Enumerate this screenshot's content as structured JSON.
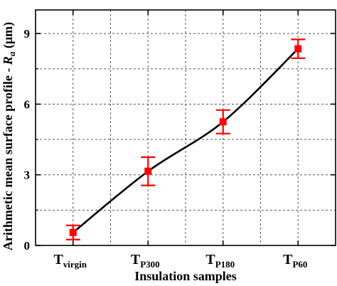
{
  "chart_data": {
    "type": "line",
    "xlabel": "Insulation samples",
    "ylabel_main": "Arithmetic mean surface profile - ",
    "ylabel_symbol": "R",
    "ylabel_subscript": "a",
    "ylabel_unit": " (μm)",
    "ylim": [
      0,
      10
    ],
    "yticks": [
      0,
      3,
      6,
      9
    ],
    "yticks_labels": [
      "0",
      "3",
      "6",
      "9"
    ],
    "grid": true,
    "categories": [
      {
        "main": "T",
        "sub": "virgin"
      },
      {
        "main": "T",
        "sub": "P300"
      },
      {
        "main": "T",
        "sub": "P180"
      },
      {
        "main": "T",
        "sub": "P60"
      }
    ],
    "series": [
      {
        "values": [
          0.55,
          3.15,
          5.25,
          8.35
        ],
        "error": [
          0.3,
          0.6,
          0.5,
          0.4
        ],
        "marker": "square",
        "marker_color": "#ff0000",
        "line_color": "#000000"
      }
    ]
  }
}
